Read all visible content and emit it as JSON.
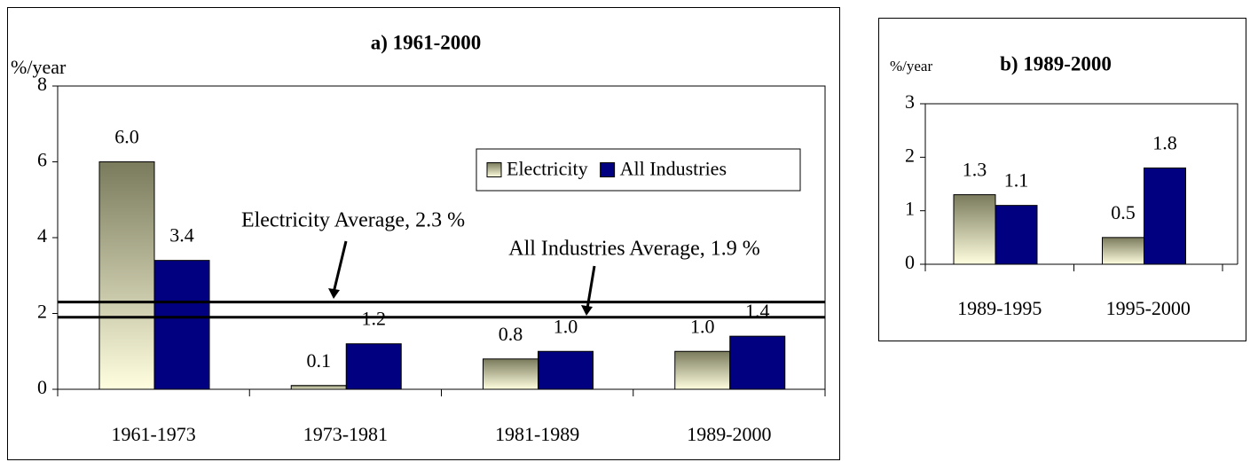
{
  "chart_data": [
    {
      "type": "bar",
      "title": "a) 1961-2000",
      "y_label": "%/year",
      "categories": [
        "1961-1973",
        "1973-1981",
        "1981-1989",
        "1989-2000"
      ],
      "series": [
        {
          "name": "Electricity",
          "color": "#7a7a5c",
          "values": [
            6.0,
            0.1,
            0.8,
            1.0
          ],
          "value_labels": [
            "6.0",
            "0.1",
            "0.8",
            "1.0"
          ]
        },
        {
          "name": "All Industries",
          "color": "#000080",
          "values": [
            3.4,
            1.2,
            1.0,
            1.4
          ],
          "value_labels": [
            "3.4",
            "1.2",
            "1.0",
            "1.4"
          ]
        }
      ],
      "ylim": [
        0,
        8
      ],
      "yticks": [
        0,
        2,
        4,
        6,
        8
      ],
      "legend": "upper right",
      "reference_lines": [
        {
          "label": "Electricity Average, 2.3 %",
          "value": 2.3
        },
        {
          "label": "All Industries Average, 1.9 %",
          "value": 1.9
        }
      ]
    },
    {
      "type": "bar",
      "title": "b) 1989-2000",
      "y_label": "%/year",
      "categories": [
        "1989-1995",
        "1995-2000"
      ],
      "series": [
        {
          "color": "#7a7a5c",
          "values": [
            1.3,
            0.5
          ],
          "value_labels": [
            "1.3",
            "0.5"
          ]
        },
        {
          "color": "#000080",
          "values": [
            1.1,
            1.8
          ],
          "value_labels": [
            "1.1",
            "1.8"
          ]
        }
      ],
      "ylim": [
        0,
        3
      ],
      "yticks": [
        0,
        1,
        2,
        3
      ]
    }
  ]
}
